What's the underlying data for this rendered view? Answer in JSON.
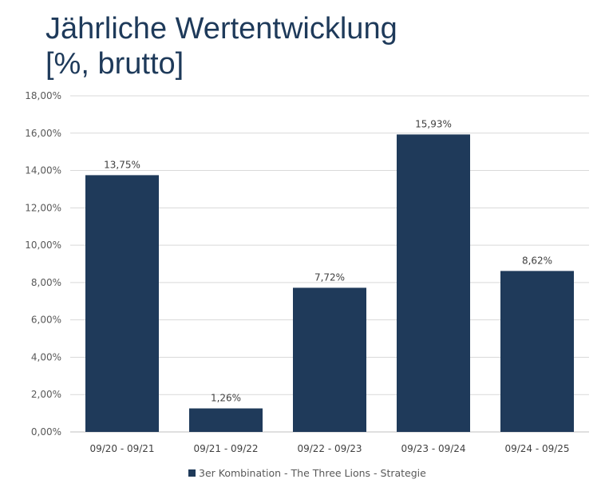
{
  "chart_data": {
    "type": "bar",
    "title": "Jährliche Wertentwicklung",
    "subtitle": "[%, brutto]",
    "categories": [
      "09/20 - 09/21",
      "09/21 - 09/22",
      "09/22 - 09/23",
      "09/23 - 09/24",
      "09/24 - 09/25"
    ],
    "series": [
      {
        "name": "3er Kombination - The Three Lions - Strategie",
        "values": [
          13.75,
          1.26,
          7.72,
          15.93,
          8.62
        ],
        "color": "#1f3a5a"
      }
    ],
    "data_labels": [
      "13,75%",
      "1,26%",
      "7,72%",
      "15,93%",
      "8,62%"
    ],
    "yticks": [
      "0,00%",
      "2,00%",
      "4,00%",
      "6,00%",
      "8,00%",
      "10,00%",
      "12,00%",
      "14,00%",
      "16,00%",
      "18,00%"
    ],
    "ylim": [
      0,
      18
    ],
    "xlabel": "",
    "ylabel": "",
    "grid": true,
    "legend": "bottom"
  }
}
